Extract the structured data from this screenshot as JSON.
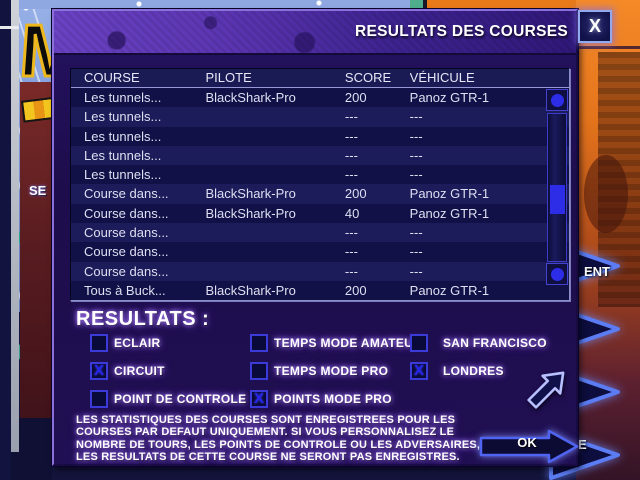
{
  "window": {
    "title": "RESULTATS DES COURSES",
    "close": "X"
  },
  "table": {
    "columns": [
      "COURSE",
      "PILOTE",
      "SCORE",
      "VÉHICULE"
    ],
    "rows": [
      {
        "course": "Les tunnels...",
        "pilote": "BlackShark-Pro",
        "score": "200",
        "vehicule": "Panoz GTR-1"
      },
      {
        "course": "Les tunnels...",
        "pilote": "",
        "score": "---",
        "vehicule": "---"
      },
      {
        "course": "Les tunnels...",
        "pilote": "",
        "score": "---",
        "vehicule": "---"
      },
      {
        "course": "Les tunnels...",
        "pilote": "",
        "score": "---",
        "vehicule": "---"
      },
      {
        "course": "Les tunnels...",
        "pilote": "",
        "score": "---",
        "vehicule": "---"
      },
      {
        "course": "Course dans...",
        "pilote": "BlackShark-Pro",
        "score": "200",
        "vehicule": "Panoz GTR-1"
      },
      {
        "course": "Course dans...",
        "pilote": "BlackShark-Pro",
        "score": "40",
        "vehicule": "Panoz GTR-1"
      },
      {
        "course": "Course dans...",
        "pilote": "",
        "score": "---",
        "vehicule": "---"
      },
      {
        "course": "Course dans...",
        "pilote": "",
        "score": "---",
        "vehicule": "---"
      },
      {
        "course": "Course dans...",
        "pilote": "",
        "score": "---",
        "vehicule": "---"
      },
      {
        "course": "Tous à Buck...",
        "pilote": "BlackShark-Pro",
        "score": "200",
        "vehicule": "Panoz GTR-1"
      }
    ]
  },
  "results": {
    "heading": "RESULTATS :",
    "check_glyph": "X",
    "columns": [
      [
        {
          "label": "ECLAIR",
          "checked": false
        },
        {
          "label": "CIRCUIT",
          "checked": true
        },
        {
          "label": "POINT DE CONTROLE",
          "checked": false
        }
      ],
      [
        {
          "label": "TEMPS MODE AMATEUR",
          "checked": false
        },
        {
          "label": "TEMPS MODE PRO",
          "checked": false
        },
        {
          "label": "POINTS MODE PRO",
          "checked": true
        }
      ],
      [
        {
          "label": "SAN FRANCISCO",
          "checked": false
        },
        {
          "label": "LONDRES",
          "checked": true
        }
      ]
    ]
  },
  "notice": {
    "lines": [
      "LES STATISTIQUES DES COURSES SONT ENREGISTREES POUR LES",
      "COURSES PAR DEFAUT UNIQUEMENT. SI VOUS PERSONNALISEZ LE",
      "NOMBRE DE TOURS, LES POINTS DE CONTROLE OU LES ADVERSAIRES,",
      "LES RESULTATS DE CETTE COURSE NE SERONT PAS ENREGISTRES."
    ]
  },
  "ok": {
    "label": "OK"
  },
  "background": {
    "left_partial_text": "SE",
    "logo_letter": "M",
    "chevrons": [
      {
        "label": "ENT"
      },
      {
        "label": ""
      },
      {
        "label": ""
      },
      {
        "label": "E"
      }
    ]
  },
  "colors": {
    "accent_blue": "#2d2de8",
    "dialog_purple": "#5a34b0",
    "dialog_body": "#1f0e50",
    "orange": "#f08020",
    "glow_lavender": "#a87cf8"
  }
}
